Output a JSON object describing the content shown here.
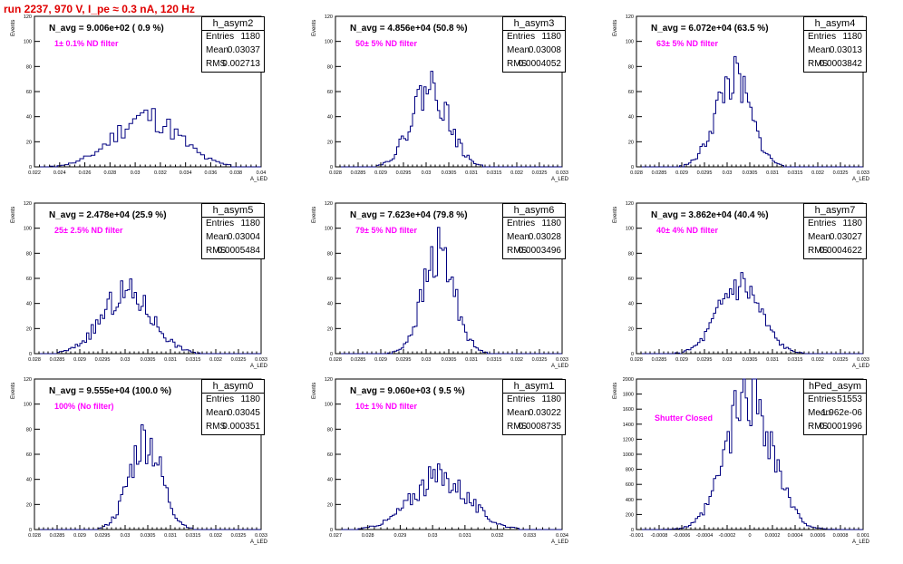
{
  "title": "run 2237,   970 V, I_pe ≈ 0.3 nA, 120 Hz",
  "chart_data": [
    {
      "type": "bar",
      "name": "h_asym2",
      "navg": "N_avg = 9.006e+02 ( 0.9 %)",
      "filter": "1± 0.1% ND filter",
      "stats": {
        "Entries": "1180",
        "Mean": "0.03037",
        "RMS": "0.002713"
      },
      "xlabel": "A_LED",
      "ylabel": "Events",
      "xlim": [
        0.021,
        0.04
      ],
      "ylim": [
        0,
        120
      ],
      "xticks": [
        "0.022",
        "0.024",
        "0.026",
        "0.028",
        "0.03",
        "0.032",
        "0.034",
        "0.036",
        "0.038",
        "0.04"
      ],
      "yticks": [
        "0",
        "20",
        "40",
        "60",
        "80",
        "100",
        "120"
      ],
      "mean": 0.03037,
      "rms": 0.002713,
      "peak": 40,
      "bins": 60,
      "seed": 11
    },
    {
      "type": "bar",
      "name": "h_asym3",
      "navg": "N_avg = 4.856e+04 (50.8 %)",
      "filter": "50± 5% ND filter",
      "stats": {
        "Entries": "1180",
        "Mean": "0.03008",
        "RMS": "0.0004052"
      },
      "xlabel": "A_LED",
      "ylabel": "Events",
      "xlim": [
        0.028,
        0.033
      ],
      "ylim": [
        0,
        120
      ],
      "xticks": [
        "0.028",
        "0.0285",
        "0.029",
        "0.0295",
        "0.03",
        "0.0305",
        "0.031",
        "0.0315",
        "0.032",
        "0.0325",
        "0.033"
      ],
      "yticks": [
        "0",
        "20",
        "40",
        "60",
        "80",
        "100",
        "120"
      ],
      "mean": 0.03008,
      "rms": 0.0004052,
      "peak": 64,
      "bins": 100,
      "seed": 22
    },
    {
      "type": "bar",
      "name": "h_asym4",
      "navg": "N_avg = 6.072e+04 (63.5 %)",
      "filter": "63± 5% ND filter",
      "stats": {
        "Entries": "1180",
        "Mean": "0.03013",
        "RMS": "0.0003842"
      },
      "xlabel": "A_LED",
      "ylabel": "Events",
      "xlim": [
        0.028,
        0.033
      ],
      "ylim": [
        0,
        120
      ],
      "xticks": [
        "0.028",
        "0.0285",
        "0.029",
        "0.0295",
        "0.03",
        "0.0305",
        "0.031",
        "0.0315",
        "0.032",
        "0.0325",
        "0.033"
      ],
      "yticks": [
        "0",
        "20",
        "40",
        "60",
        "80",
        "100",
        "120"
      ],
      "mean": 0.03013,
      "rms": 0.0003842,
      "peak": 70,
      "bins": 100,
      "seed": 33
    },
    {
      "type": "bar",
      "name": "h_asym5",
      "navg": "N_avg = 2.478e+04 (25.9 %)",
      "filter": "25± 2.5% ND filter",
      "stats": {
        "Entries": "1180",
        "Mean": "0.03004",
        "RMS": "0.0005484"
      },
      "xlabel": "A_LED",
      "ylabel": "Events",
      "xlim": [
        0.028,
        0.033
      ],
      "ylim": [
        0,
        120
      ],
      "xticks": [
        "0.028",
        "0.0285",
        "0.029",
        "0.0295",
        "0.03",
        "0.0305",
        "0.031",
        "0.0315",
        "0.032",
        "0.0325",
        "0.033"
      ],
      "yticks": [
        "0",
        "20",
        "40",
        "60",
        "80",
        "100",
        "120"
      ],
      "mean": 0.03004,
      "rms": 0.0005484,
      "peak": 48,
      "bins": 100,
      "seed": 44
    },
    {
      "type": "bar",
      "name": "h_asym6",
      "navg": "N_avg = 7.623e+04 (79.8 %)",
      "filter": "79± 5% ND filter",
      "stats": {
        "Entries": "1180",
        "Mean": "0.03028",
        "RMS": "0.0003496"
      },
      "xlabel": "A_LED",
      "ylabel": "Events",
      "xlim": [
        0.028,
        0.033
      ],
      "ylim": [
        0,
        120
      ],
      "xticks": [
        "0.028",
        "0.0285",
        "0.029",
        "0.0295",
        "0.03",
        "0.0305",
        "0.031",
        "0.0315",
        "0.032",
        "0.0325",
        "0.033"
      ],
      "yticks": [
        "0",
        "20",
        "40",
        "60",
        "80",
        "100",
        "120"
      ],
      "mean": 0.03028,
      "rms": 0.0003496,
      "peak": 80,
      "bins": 100,
      "seed": 55
    },
    {
      "type": "bar",
      "name": "h_asym7",
      "navg": "N_avg = 3.862e+04 (40.4 %)",
      "filter": "40± 4% ND filter",
      "stats": {
        "Entries": "1180",
        "Mean": "0.03027",
        "RMS": "0.0004622"
      },
      "xlabel": "A_LED",
      "ylabel": "Events",
      "xlim": [
        0.028,
        0.033
      ],
      "ylim": [
        0,
        120
      ],
      "xticks": [
        "0.028",
        "0.0285",
        "0.029",
        "0.0295",
        "0.03",
        "0.0305",
        "0.031",
        "0.0315",
        "0.032",
        "0.0325",
        "0.033"
      ],
      "yticks": [
        "0",
        "20",
        "40",
        "60",
        "80",
        "100",
        "120"
      ],
      "mean": 0.03027,
      "rms": 0.0004622,
      "peak": 55,
      "bins": 100,
      "seed": 66
    },
    {
      "type": "bar",
      "name": "h_asym0",
      "navg": "N_avg = 9.555e+04 (100.0 %)",
      "filter": "100% (No filter)",
      "stats": {
        "Entries": "1180",
        "Mean": "0.03045",
        "RMS": "0.000351"
      },
      "xlabel": "A_LED",
      "ylabel": "Events",
      "xlim": [
        0.028,
        0.033
      ],
      "ylim": [
        0,
        120
      ],
      "xticks": [
        "0.028",
        "0.0285",
        "0.029",
        "0.0295",
        "0.03",
        "0.0305",
        "0.031",
        "0.0315",
        "0.032",
        "0.0325",
        "0.033"
      ],
      "yticks": [
        "0",
        "20",
        "40",
        "60",
        "80",
        "100",
        "120"
      ],
      "mean": 0.03045,
      "rms": 0.000351,
      "peak": 72,
      "bins": 100,
      "seed": 77
    },
    {
      "type": "bar",
      "name": "h_asym1",
      "navg": "N_avg = 9.060e+03 ( 9.5 %)",
      "filter": "10± 1% ND filter",
      "stats": {
        "Entries": "1180",
        "Mean": "0.03022",
        "RMS": "0.0008735"
      },
      "xlabel": "A_LED",
      "ylabel": "Events",
      "xlim": [
        0.027,
        0.034
      ],
      "ylim": [
        0,
        120
      ],
      "xticks": [
        "0.027",
        "0.028",
        "0.029",
        "0.03",
        "0.031",
        "0.032",
        "0.033",
        "0.034"
      ],
      "yticks": [
        "0",
        "20",
        "40",
        "60",
        "80",
        "100",
        "120"
      ],
      "mean": 0.03022,
      "rms": 0.0008735,
      "peak": 42,
      "bins": 100,
      "seed": 88
    },
    {
      "type": "bar",
      "name": "hPed_asym",
      "navg": "",
      "filter": "Shutter Closed",
      "stats": {
        "Entries": "51553",
        "Mean": "-1.962e-06",
        "RMS": "0.0001996"
      },
      "xlabel": "A_LED",
      "ylabel": "Events",
      "xlim": [
        -0.001,
        0.001
      ],
      "ylim": [
        0,
        2200
      ],
      "xticks": [
        "-0.001",
        "-0.0008",
        "-0.0006",
        "-0.0004",
        "-0.0002",
        "0",
        "0.0002",
        "0.0004",
        "0.0006",
        "0.0008",
        "0.001"
      ],
      "yticks": [
        "0",
        "200",
        "400",
        "600",
        "800",
        "1000",
        "1200",
        "1400",
        "1600",
        "1800",
        "2000"
      ],
      "mean": -2e-06,
      "rms": 0.0001996,
      "peak": 2020,
      "bins": 100,
      "seed": 99
    }
  ]
}
